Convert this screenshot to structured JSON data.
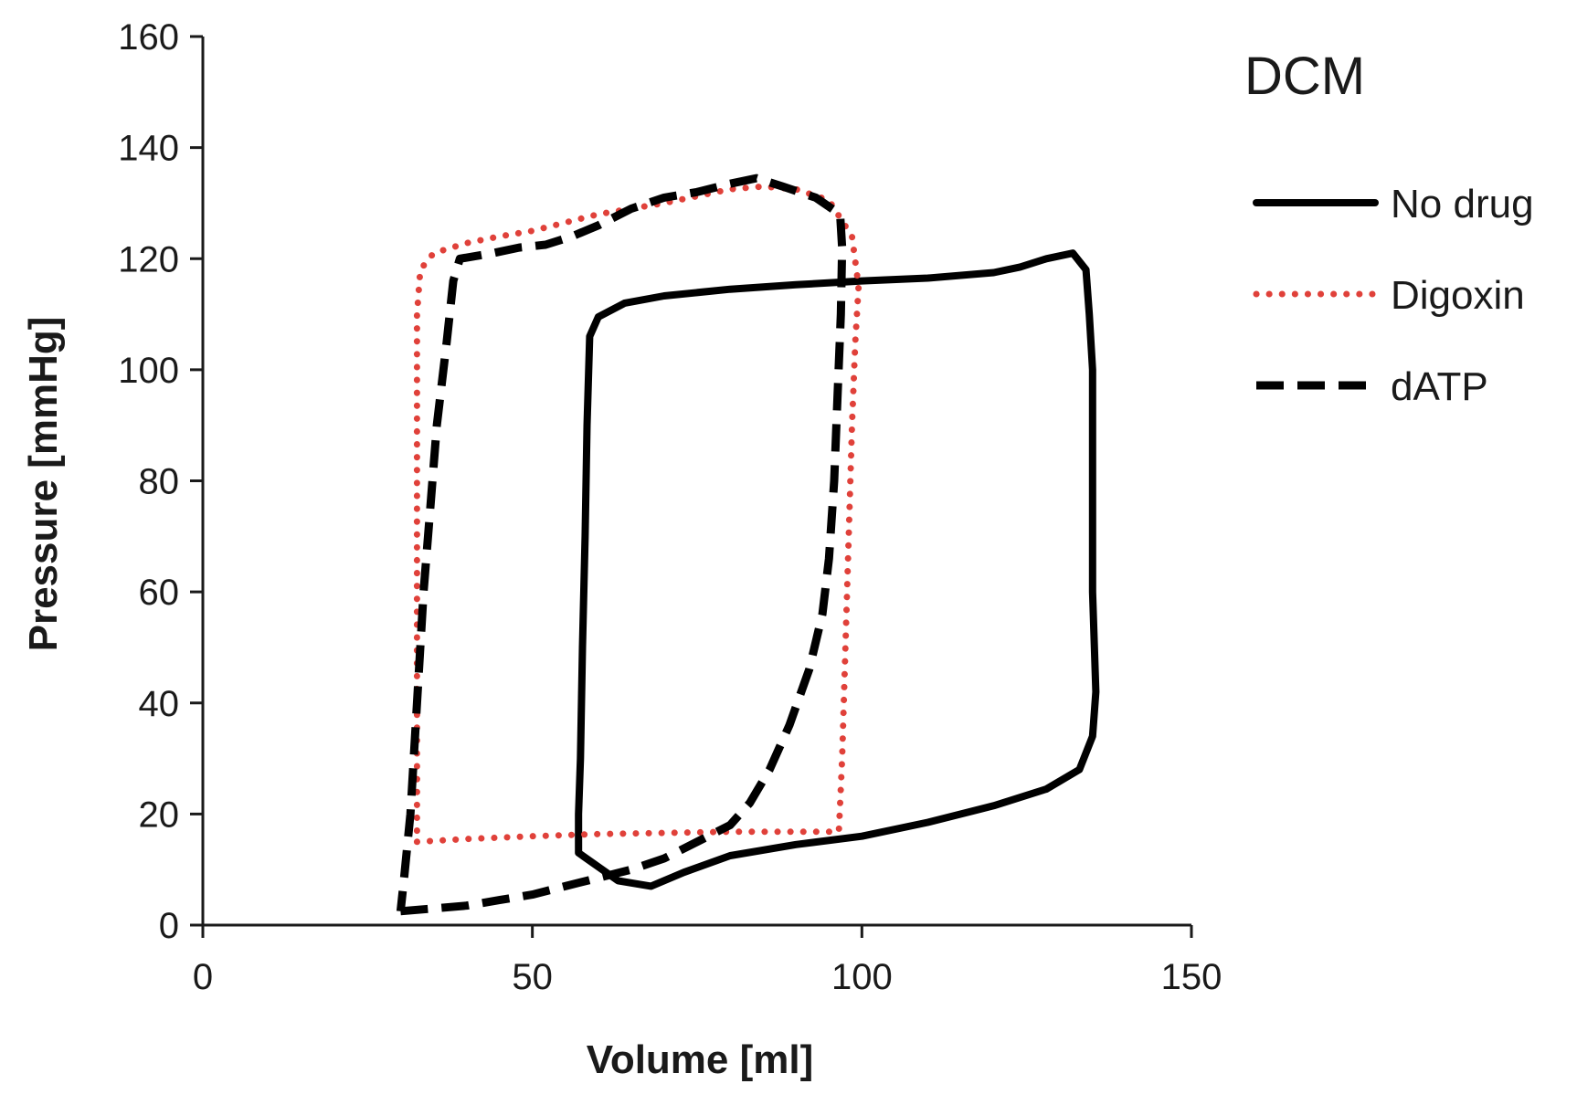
{
  "chart_data": {
    "type": "line",
    "title": "DCM",
    "xlabel": "Volume [ml]",
    "ylabel": "Pressure [mmHg]",
    "xlim": [
      0,
      150
    ],
    "ylim": [
      0,
      160
    ],
    "xticks": [
      0,
      50,
      100,
      150
    ],
    "yticks": [
      0,
      20,
      40,
      60,
      80,
      100,
      120,
      140,
      160
    ],
    "grid": false,
    "legend_position": "right",
    "series": [
      {
        "name": "No drug",
        "color": "#000000",
        "style": "solid",
        "points": [
          [
            57,
            13
          ],
          [
            63,
            8
          ],
          [
            68,
            7
          ],
          [
            73,
            9.5
          ],
          [
            80,
            12.5
          ],
          [
            90,
            14.5
          ],
          [
            100,
            16
          ],
          [
            110,
            18.5
          ],
          [
            120,
            21.5
          ],
          [
            128,
            24.5
          ],
          [
            133,
            28
          ],
          [
            135,
            34
          ],
          [
            135.5,
            42
          ],
          [
            135,
            60
          ],
          [
            135,
            80
          ],
          [
            135,
            100
          ],
          [
            134.5,
            110
          ],
          [
            134,
            118
          ],
          [
            132,
            121
          ],
          [
            128,
            120
          ],
          [
            124,
            118.5
          ],
          [
            120,
            117.5
          ],
          [
            110,
            116.5
          ],
          [
            100,
            116
          ],
          [
            90,
            115.3
          ],
          [
            80,
            114.5
          ],
          [
            70,
            113.3
          ],
          [
            64,
            112
          ],
          [
            60,
            109.5
          ],
          [
            58.7,
            106
          ],
          [
            58.3,
            90
          ],
          [
            58,
            70
          ],
          [
            57.6,
            50
          ],
          [
            57.3,
            30
          ],
          [
            57,
            20
          ],
          [
            57,
            13
          ]
        ]
      },
      {
        "name": "Digoxin",
        "color": "#e0413a",
        "style": "dotted",
        "points": [
          [
            32.5,
            15
          ],
          [
            40,
            15.5
          ],
          [
            50,
            16
          ],
          [
            60,
            16.4
          ],
          [
            70,
            16.6
          ],
          [
            80,
            16.8
          ],
          [
            90,
            16.8
          ],
          [
            96.5,
            16.8
          ],
          [
            97,
            30
          ],
          [
            97.5,
            50
          ],
          [
            98,
            70
          ],
          [
            98.5,
            90
          ],
          [
            99,
            105
          ],
          [
            99.5,
            115
          ],
          [
            98.5,
            124
          ],
          [
            95,
            130.5
          ],
          [
            90,
            132.5
          ],
          [
            85,
            133
          ],
          [
            80,
            132.5
          ],
          [
            70,
            130
          ],
          [
            60,
            128
          ],
          [
            50,
            125
          ],
          [
            45,
            124
          ],
          [
            40,
            122.8
          ],
          [
            35,
            121
          ],
          [
            33,
            118
          ],
          [
            32.5,
            110
          ],
          [
            32.5,
            90
          ],
          [
            32.5,
            70
          ],
          [
            32.5,
            50
          ],
          [
            32.5,
            30
          ],
          [
            32.5,
            15
          ]
        ]
      },
      {
        "name": "dATP",
        "color": "#000000",
        "style": "dashed",
        "points": [
          [
            30,
            2.5
          ],
          [
            35,
            3
          ],
          [
            40,
            3.5
          ],
          [
            45,
            4.5
          ],
          [
            50,
            5.5
          ],
          [
            55,
            7
          ],
          [
            60,
            8.5
          ],
          [
            65,
            10
          ],
          [
            70,
            12
          ],
          [
            75,
            15
          ],
          [
            80,
            18
          ],
          [
            83,
            22
          ],
          [
            86,
            28
          ],
          [
            89,
            36
          ],
          [
            92,
            46
          ],
          [
            94,
            56
          ],
          [
            95,
            66
          ],
          [
            95.8,
            80
          ],
          [
            96.3,
            95
          ],
          [
            96.8,
            110
          ],
          [
            97,
            122
          ],
          [
            96.7,
            128
          ],
          [
            93,
            131
          ],
          [
            88,
            133
          ],
          [
            84,
            134.5
          ],
          [
            80,
            133.5
          ],
          [
            75,
            132
          ],
          [
            70,
            131
          ],
          [
            65,
            129
          ],
          [
            60,
            126
          ],
          [
            56,
            124
          ],
          [
            52,
            122.5
          ],
          [
            48,
            122
          ],
          [
            44,
            121
          ],
          [
            39,
            120
          ],
          [
            38,
            116
          ],
          [
            37,
            105
          ],
          [
            35.5,
            90
          ],
          [
            34.5,
            75
          ],
          [
            33.5,
            60
          ],
          [
            32.5,
            40
          ],
          [
            31.5,
            20
          ],
          [
            30.5,
            8
          ],
          [
            30,
            2.5
          ]
        ]
      }
    ]
  }
}
